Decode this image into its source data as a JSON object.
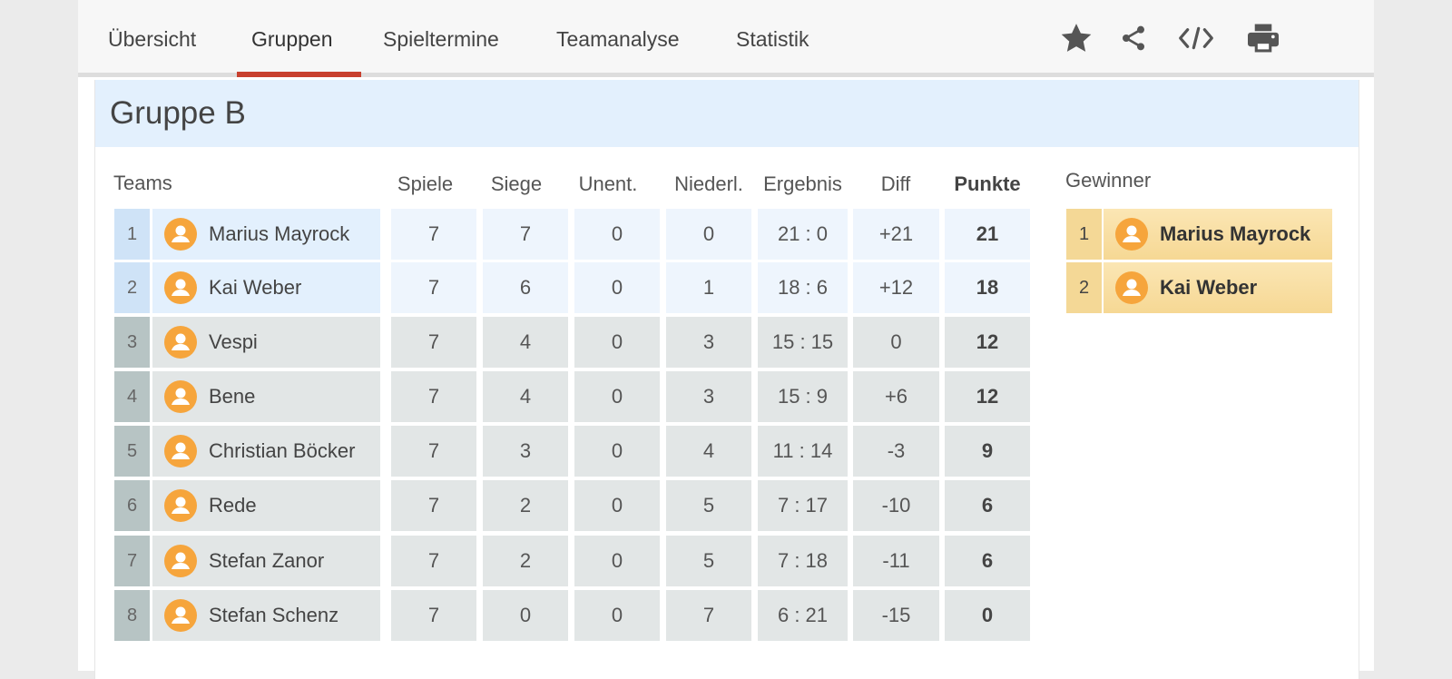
{
  "nav": {
    "tabs": [
      {
        "label": "Übersicht",
        "active": false
      },
      {
        "label": "Gruppen",
        "active": true
      },
      {
        "label": "Spieltermine",
        "active": false
      },
      {
        "label": "Teamanalyse",
        "active": false
      },
      {
        "label": "Statistik",
        "active": false
      }
    ],
    "icons": [
      "star-icon",
      "share-icon",
      "code-embed-icon",
      "print-icon"
    ]
  },
  "group": {
    "title": "Gruppe B",
    "columns": {
      "teams": "Teams",
      "spiele": "Spiele",
      "siege": "Siege",
      "unent": "Unent.",
      "niederl": "Niederl.",
      "ergebnis": "Ergebnis",
      "diff": "Diff",
      "punkte": "Punkte"
    },
    "rows": [
      {
        "rank": "1",
        "name": "Marius Mayrock",
        "spiele": "7",
        "siege": "7",
        "unent": "0",
        "niederl": "0",
        "ergebnis": "21 : 0",
        "diff": "+21",
        "punkte": "21"
      },
      {
        "rank": "2",
        "name": "Kai Weber",
        "spiele": "7",
        "siege": "6",
        "unent": "0",
        "niederl": "1",
        "ergebnis": "18 : 6",
        "diff": "+12",
        "punkte": "18"
      },
      {
        "rank": "3",
        "name": "Vespi",
        "spiele": "7",
        "siege": "4",
        "unent": "0",
        "niederl": "3",
        "ergebnis": "15 : 15",
        "diff": "0",
        "punkte": "12"
      },
      {
        "rank": "4",
        "name": "Bene",
        "spiele": "7",
        "siege": "4",
        "unent": "0",
        "niederl": "3",
        "ergebnis": "15 : 9",
        "diff": "+6",
        "punkte": "12"
      },
      {
        "rank": "5",
        "name": "Christian Böcker",
        "spiele": "7",
        "siege": "3",
        "unent": "0",
        "niederl": "4",
        "ergebnis": "11 : 14",
        "diff": "-3",
        "punkte": "9"
      },
      {
        "rank": "6",
        "name": "Rede",
        "spiele": "7",
        "siege": "2",
        "unent": "0",
        "niederl": "5",
        "ergebnis": "7 : 17",
        "diff": "-10",
        "punkte": "6"
      },
      {
        "rank": "7",
        "name": "Stefan Zanor",
        "spiele": "7",
        "siege": "2",
        "unent": "0",
        "niederl": "5",
        "ergebnis": "7 : 18",
        "diff": "-11",
        "punkte": "6"
      },
      {
        "rank": "8",
        "name": "Stefan Schenz",
        "spiele": "7",
        "siege": "0",
        "unent": "0",
        "niederl": "7",
        "ergebnis": "6 : 21",
        "diff": "-15",
        "punkte": "0"
      }
    ]
  },
  "winners": {
    "title": "Gewinner",
    "items": [
      {
        "rank": "1",
        "name": "Marius Mayrock"
      },
      {
        "rank": "2",
        "name": "Kai Weber"
      }
    ]
  },
  "colors": {
    "active_tab_underline": "#c8402e",
    "header_bg": "#e3f0fd",
    "qualified_rank_bg": "#cfe3f7",
    "qualified_name_bg": "#e3f0fd",
    "qualified_stat_bg": "#eef5fd",
    "other_rank_bg": "#b7c4c4",
    "other_cell_bg": "#e2e6e6",
    "avatar": "#f6a53c",
    "winner_bg": "#f8deA0"
  }
}
